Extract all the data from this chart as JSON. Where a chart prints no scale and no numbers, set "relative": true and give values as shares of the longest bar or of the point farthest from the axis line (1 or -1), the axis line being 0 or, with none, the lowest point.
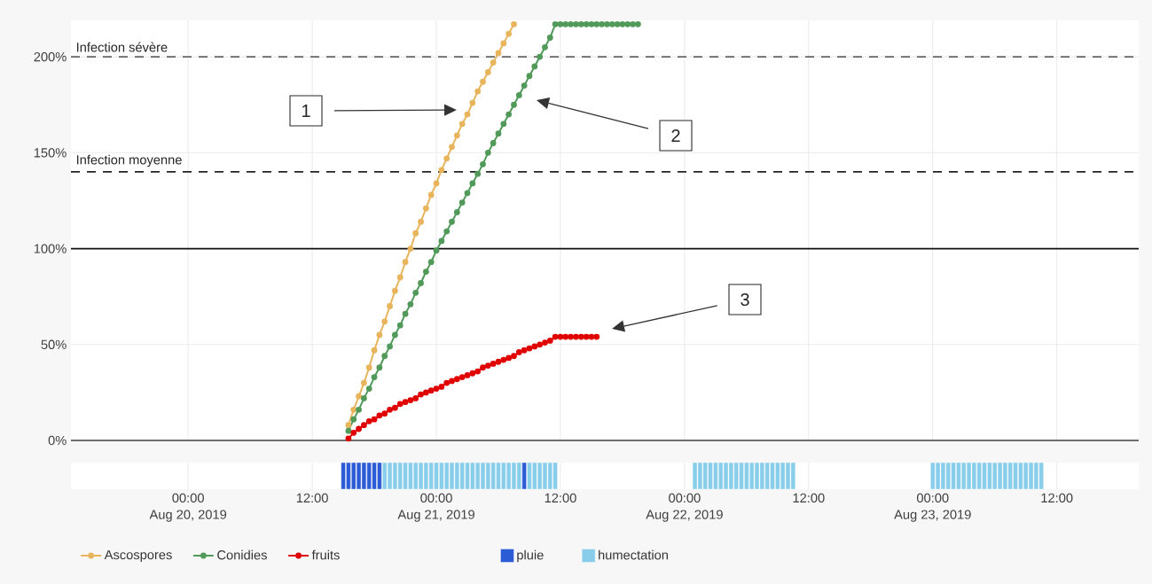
{
  "chart_data": [
    {
      "type": "line",
      "xlim": [
        "2019-08-19T12:40",
        "2019-08-23T19:55"
      ],
      "ylim": [
        0,
        219
      ],
      "xticks": [
        {
          "value": "2019-08-20T00:00",
          "label": null
        },
        {
          "value": "2019-08-20T12:00",
          "label": null
        },
        {
          "value": "2019-08-21T00:00",
          "label": null
        },
        {
          "value": "2019-08-21T12:00",
          "label": null
        },
        {
          "value": "2019-08-22T00:00",
          "label": null
        },
        {
          "value": "2019-08-22T12:00",
          "label": null
        },
        {
          "value": "2019-08-23T00:00",
          "label": null
        },
        {
          "value": "2019-08-23T12:00",
          "label": null
        }
      ],
      "yticks": [
        {
          "value": 0,
          "label": "0%"
        },
        {
          "value": 50,
          "label": "50%"
        },
        {
          "value": 100,
          "label": "100%"
        },
        {
          "value": 150,
          "label": "150%"
        },
        {
          "value": 200,
          "label": "200%"
        }
      ],
      "tick_labels": "y",
      "grid": true,
      "legend": "bottom",
      "marker": "circle",
      "line_style": "solid",
      "series": [
        {
          "name": "Ascospores",
          "color": "#e8b45c",
          "x": [
            "2019-08-20T15:30",
            "2019-08-20T16:00",
            "2019-08-20T16:30",
            "2019-08-20T17:00",
            "2019-08-20T17:30",
            "2019-08-20T18:00",
            "2019-08-20T18:30",
            "2019-08-20T19:00",
            "2019-08-20T19:30",
            "2019-08-20T20:00",
            "2019-08-20T20:30",
            "2019-08-20T21:00",
            "2019-08-20T21:30",
            "2019-08-20T22:00",
            "2019-08-20T22:30",
            "2019-08-20T23:00",
            "2019-08-20T23:30",
            "2019-08-21T00:00",
            "2019-08-21T00:30",
            "2019-08-21T01:00",
            "2019-08-21T01:30",
            "2019-08-21T02:00",
            "2019-08-21T02:30",
            "2019-08-21T03:00",
            "2019-08-21T03:30",
            "2019-08-21T04:00",
            "2019-08-21T04:30",
            "2019-08-21T05:00",
            "2019-08-21T05:30",
            "2019-08-21T06:00",
            "2019-08-21T06:30",
            "2019-08-21T07:00",
            "2019-08-21T07:30"
          ],
          "values": [
            8,
            16,
            23,
            30,
            38,
            47,
            55,
            62,
            70,
            78,
            85,
            93,
            100,
            108,
            114,
            121,
            128,
            134,
            141,
            147,
            153,
            159,
            165,
            170,
            176,
            182,
            187,
            192,
            197,
            202,
            207,
            212,
            217
          ]
        },
        {
          "name": "Conidies",
          "color": "#519a5a",
          "x": [
            "2019-08-20T15:30",
            "2019-08-20T16:00",
            "2019-08-20T16:30",
            "2019-08-20T17:00",
            "2019-08-20T17:30",
            "2019-08-20T18:00",
            "2019-08-20T18:30",
            "2019-08-20T19:00",
            "2019-08-20T19:30",
            "2019-08-20T20:00",
            "2019-08-20T20:30",
            "2019-08-20T21:00",
            "2019-08-20T21:30",
            "2019-08-20T22:00",
            "2019-08-20T22:30",
            "2019-08-20T23:00",
            "2019-08-20T23:30",
            "2019-08-21T00:00",
            "2019-08-21T00:30",
            "2019-08-21T01:00",
            "2019-08-21T01:30",
            "2019-08-21T02:00",
            "2019-08-21T02:30",
            "2019-08-21T03:00",
            "2019-08-21T03:30",
            "2019-08-21T04:00",
            "2019-08-21T04:30",
            "2019-08-21T05:00",
            "2019-08-21T05:30",
            "2019-08-21T06:00",
            "2019-08-21T06:30",
            "2019-08-21T07:00",
            "2019-08-21T07:30",
            "2019-08-21T08:00",
            "2019-08-21T08:30",
            "2019-08-21T09:00",
            "2019-08-21T09:30",
            "2019-08-21T10:00",
            "2019-08-21T10:30",
            "2019-08-21T11:00",
            "2019-08-21T11:30",
            "2019-08-21T12:00",
            "2019-08-21T12:30",
            "2019-08-21T13:00",
            "2019-08-21T13:30",
            "2019-08-21T14:00",
            "2019-08-21T14:30",
            "2019-08-21T15:00",
            "2019-08-21T15:30",
            "2019-08-21T16:00",
            "2019-08-21T16:30",
            "2019-08-21T17:00",
            "2019-08-21T17:30",
            "2019-08-21T18:00",
            "2019-08-21T18:30",
            "2019-08-21T19:00",
            "2019-08-21T19:30"
          ],
          "values": [
            5,
            11,
            16,
            22,
            27,
            33,
            38,
            44,
            49,
            55,
            60,
            66,
            71,
            77,
            82,
            88,
            93,
            99,
            104,
            109,
            114,
            119,
            124,
            129,
            134,
            139,
            144,
            150,
            155,
            160,
            165,
            170,
            175,
            180,
            185,
            190,
            195,
            200,
            205,
            210,
            217,
            217,
            217,
            217,
            217,
            217,
            217,
            217,
            217,
            217,
            217,
            217,
            217,
            217,
            217,
            217,
            217
          ]
        },
        {
          "name": "fruits",
          "color": "#e00000",
          "x": [
            "2019-08-20T15:30",
            "2019-08-20T16:00",
            "2019-08-20T16:30",
            "2019-08-20T17:00",
            "2019-08-20T17:30",
            "2019-08-20T18:00",
            "2019-08-20T18:30",
            "2019-08-20T19:00",
            "2019-08-20T19:30",
            "2019-08-20T20:00",
            "2019-08-20T20:30",
            "2019-08-20T21:00",
            "2019-08-20T21:30",
            "2019-08-20T22:00",
            "2019-08-20T22:30",
            "2019-08-20T23:00",
            "2019-08-20T23:30",
            "2019-08-21T00:00",
            "2019-08-21T00:30",
            "2019-08-21T01:00",
            "2019-08-21T01:30",
            "2019-08-21T02:00",
            "2019-08-21T02:30",
            "2019-08-21T03:00",
            "2019-08-21T03:30",
            "2019-08-21T04:00",
            "2019-08-21T04:30",
            "2019-08-21T05:00",
            "2019-08-21T05:30",
            "2019-08-21T06:00",
            "2019-08-21T06:30",
            "2019-08-21T07:00",
            "2019-08-21T07:30",
            "2019-08-21T08:00",
            "2019-08-21T08:30",
            "2019-08-21T09:00",
            "2019-08-21T09:30",
            "2019-08-21T10:00",
            "2019-08-21T10:30",
            "2019-08-21T11:00",
            "2019-08-21T11:30",
            "2019-08-21T12:00",
            "2019-08-21T12:30",
            "2019-08-21T13:00",
            "2019-08-21T13:30",
            "2019-08-21T14:00",
            "2019-08-21T14:30",
            "2019-08-21T15:00",
            "2019-08-21T15:30"
          ],
          "values": [
            1,
            4,
            6,
            8,
            10,
            11,
            13,
            14,
            16,
            17,
            19,
            20,
            21,
            22,
            24,
            25,
            26,
            27,
            28,
            30,
            31,
            32,
            33,
            34,
            35,
            36,
            38,
            39,
            40,
            41,
            42,
            43,
            44,
            46,
            47,
            48,
            49,
            50,
            51,
            52,
            54,
            54,
            54,
            54,
            54,
            54,
            54,
            54,
            54
          ]
        }
      ],
      "ref_lines": [
        {
          "axis": "y",
          "value": 200,
          "label": "Infection sévère",
          "color": "#666666",
          "line_style": "dashed"
        },
        {
          "axis": "y",
          "value": 140,
          "label": "Infection moyenne",
          "color": "#222222",
          "line_style": "dashed"
        },
        {
          "axis": "y",
          "value": 100,
          "color": "#111111",
          "line_style": "solid"
        }
      ],
      "annotations": [
        "1",
        "2",
        "3"
      ]
    },
    {
      "type": "bar",
      "relative": true,
      "xlim": [
        "2019-08-19T12:40",
        "2019-08-23T19:55"
      ],
      "xticks": [
        {
          "value": "2019-08-20T00:00",
          "label": "00:00\nAug 20, 2019"
        },
        {
          "value": "2019-08-20T12:00",
          "label": "12:00"
        },
        {
          "value": "2019-08-21T00:00",
          "label": "00:00\nAug 21, 2019"
        },
        {
          "value": "2019-08-21T12:00",
          "label": "12:00"
        },
        {
          "value": "2019-08-22T00:00",
          "label": "00:00\nAug 22, 2019"
        },
        {
          "value": "2019-08-22T12:00",
          "label": "12:00"
        },
        {
          "value": "2019-08-23T00:00",
          "label": "00:00\nAug 23, 2019"
        },
        {
          "value": "2019-08-23T12:00",
          "label": "12:00"
        }
      ],
      "tick_labels": "x",
      "grid": "x",
      "legend": "bottom",
      "series": [
        {
          "name": "pluie",
          "color": "#2c5bd6",
          "x": [
            "2019-08-20T15:00",
            "2019-08-20T15:30",
            "2019-08-20T16:00",
            "2019-08-20T16:30",
            "2019-08-20T17:00",
            "2019-08-20T17:30",
            "2019-08-20T18:00",
            "2019-08-20T18:30",
            "2019-08-21T08:30"
          ],
          "values": [
            1,
            1,
            1,
            1,
            1,
            1,
            1,
            1,
            1
          ]
        },
        {
          "name": "humectation",
          "color": "#88cdea",
          "x": [
            "2019-08-20T19:00",
            "2019-08-20T19:30",
            "2019-08-20T20:00",
            "2019-08-20T20:30",
            "2019-08-20T21:00",
            "2019-08-20T21:30",
            "2019-08-20T22:00",
            "2019-08-20T22:30",
            "2019-08-20T23:00",
            "2019-08-20T23:30",
            "2019-08-21T00:00",
            "2019-08-21T00:30",
            "2019-08-21T01:00",
            "2019-08-21T01:30",
            "2019-08-21T02:00",
            "2019-08-21T02:30",
            "2019-08-21T03:00",
            "2019-08-21T03:30",
            "2019-08-21T04:00",
            "2019-08-21T04:30",
            "2019-08-21T05:00",
            "2019-08-21T05:30",
            "2019-08-21T06:00",
            "2019-08-21T06:30",
            "2019-08-21T07:00",
            "2019-08-21T07:30",
            "2019-08-21T08:00",
            "2019-08-21T09:00",
            "2019-08-21T09:30",
            "2019-08-21T10:00",
            "2019-08-21T10:30",
            "2019-08-21T11:00",
            "2019-08-21T11:30",
            "2019-08-22T01:00",
            "2019-08-22T01:30",
            "2019-08-22T02:00",
            "2019-08-22T02:30",
            "2019-08-22T03:00",
            "2019-08-22T03:30",
            "2019-08-22T04:00",
            "2019-08-22T04:30",
            "2019-08-22T05:00",
            "2019-08-22T05:30",
            "2019-08-22T06:00",
            "2019-08-22T06:30",
            "2019-08-22T07:00",
            "2019-08-22T07:30",
            "2019-08-22T08:00",
            "2019-08-22T08:30",
            "2019-08-22T09:00",
            "2019-08-22T09:30",
            "2019-08-22T10:00",
            "2019-08-22T10:30",
            "2019-08-23T00:00",
            "2019-08-23T00:30",
            "2019-08-23T01:00",
            "2019-08-23T01:30",
            "2019-08-23T02:00",
            "2019-08-23T02:30",
            "2019-08-23T03:00",
            "2019-08-23T03:30",
            "2019-08-23T04:00",
            "2019-08-23T04:30",
            "2019-08-23T05:00",
            "2019-08-23T05:30",
            "2019-08-23T06:00",
            "2019-08-23T06:30",
            "2019-08-23T07:00",
            "2019-08-23T07:30",
            "2019-08-23T08:00",
            "2019-08-23T08:30",
            "2019-08-23T09:00",
            "2019-08-23T09:30",
            "2019-08-23T10:00",
            "2019-08-23T10:30"
          ],
          "values": [
            1,
            1,
            1,
            1,
            1,
            1,
            1,
            1,
            1,
            1,
            1,
            1,
            1,
            1,
            1,
            1,
            1,
            1,
            1,
            1,
            1,
            1,
            1,
            1,
            1,
            1,
            1,
            1,
            1,
            1,
            1,
            1,
            1,
            1,
            1,
            1,
            1,
            1,
            1,
            1,
            1,
            1,
            1,
            1,
            1,
            1,
            1,
            1,
            1,
            1,
            1,
            1,
            1,
            1,
            1,
            1,
            1,
            1,
            1,
            1,
            1,
            1,
            1,
            1,
            1,
            1,
            1,
            1,
            1,
            1,
            1,
            1,
            1,
            1,
            1
          ]
        }
      ]
    }
  ]
}
